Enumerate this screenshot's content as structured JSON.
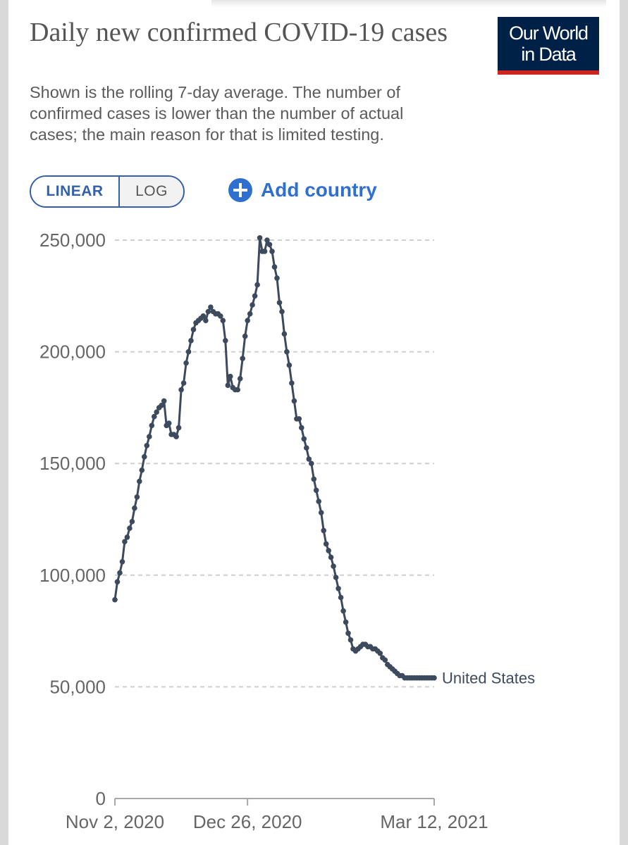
{
  "header": {
    "title": "Daily new confirmed COVID-19 cases",
    "subtitle": "Shown is the rolling 7-day average. The number of confirmed cases is lower than the number of actual cases; the main reason for that is limited testing.",
    "logo_line1": "Our World",
    "logo_line2": "in Data"
  },
  "controls": {
    "linear_label": "LINEAR",
    "log_label": "LOG",
    "add_country_label": "Add country"
  },
  "colors": {
    "series": "#3d4a5e",
    "accent": "#3360a9",
    "logo_bg": "#002147",
    "logo_bar": "#ce261e"
  },
  "chart_data": {
    "type": "line",
    "title": "Daily new confirmed COVID-19 cases",
    "xlabel": "",
    "ylabel": "",
    "ylim": [
      0,
      250000
    ],
    "xlim_days": [
      0,
      130
    ],
    "y_ticks": [
      0,
      50000,
      100000,
      150000,
      200000,
      250000
    ],
    "y_tick_labels": [
      "0",
      "50,000",
      "100,000",
      "150,000",
      "200,000",
      "250,000"
    ],
    "x_ticks": [
      0,
      54,
      130
    ],
    "x_tick_labels": [
      "Nov 2, 2020",
      "Dec 26, 2020",
      "Mar 12, 2021"
    ],
    "grid": true,
    "series": [
      {
        "name": "United States",
        "x_unit": "days since Nov 2, 2020",
        "x": [
          0,
          1,
          2,
          3,
          4,
          5,
          6,
          7,
          8,
          9,
          10,
          11,
          12,
          13,
          14,
          15,
          16,
          17,
          18,
          19,
          20,
          21,
          22,
          23,
          24,
          25,
          26,
          27,
          28,
          29,
          30,
          31,
          32,
          33,
          34,
          35,
          36,
          37,
          38,
          39,
          40,
          41,
          42,
          43,
          44,
          45,
          46,
          47,
          48,
          49,
          50,
          51,
          52,
          53,
          54,
          55,
          56,
          57,
          58,
          59,
          60,
          61,
          62,
          63,
          64,
          65,
          66,
          67,
          68,
          69,
          70,
          71,
          72,
          73,
          74,
          75,
          76,
          77,
          78,
          79,
          80,
          81,
          82,
          83,
          84,
          85,
          86,
          87,
          88,
          89,
          90,
          91,
          92,
          93,
          94,
          95,
          96,
          97,
          98,
          99,
          100,
          101,
          102,
          103,
          104,
          105,
          106,
          107,
          108,
          109,
          110,
          111,
          112,
          113,
          114,
          115,
          116,
          117,
          118,
          119,
          120,
          121,
          122,
          123,
          124,
          125,
          126,
          127,
          128,
          129,
          130
        ],
        "values": [
          89000,
          97000,
          101000,
          106000,
          115000,
          117000,
          121000,
          124000,
          130000,
          135000,
          142000,
          147000,
          153000,
          158000,
          162000,
          167000,
          171000,
          173000,
          175000,
          176000,
          178000,
          167000,
          168000,
          163000,
          163000,
          162000,
          166000,
          183000,
          186000,
          195000,
          200000,
          205000,
          210000,
          213000,
          214000,
          215000,
          216000,
          214000,
          218000,
          220000,
          218000,
          217000,
          217000,
          216000,
          214000,
          205000,
          185000,
          189000,
          184000,
          183000,
          183000,
          188000,
          197000,
          207000,
          214000,
          217000,
          221000,
          225000,
          230000,
          251000,
          245000,
          245000,
          250000,
          248000,
          245000,
          238000,
          233000,
          222000,
          218000,
          208000,
          200000,
          194000,
          186000,
          178000,
          170000,
          170000,
          166000,
          161000,
          157000,
          152000,
          150000,
          143000,
          138000,
          133000,
          128000,
          120000,
          114000,
          111000,
          108000,
          104000,
          99000,
          94000,
          90000,
          84000,
          79000,
          74000,
          71000,
          67000,
          66000,
          67000,
          68000,
          69000,
          69000,
          68000,
          68000,
          67000,
          67000,
          66000,
          65000,
          63000,
          62000,
          60000,
          59000,
          58000,
          57000,
          56000,
          55000,
          55000,
          54000,
          54000,
          54000,
          54000,
          54000,
          54000,
          54000,
          54000,
          54000,
          54000,
          54000,
          54000,
          54000
        ]
      }
    ]
  }
}
